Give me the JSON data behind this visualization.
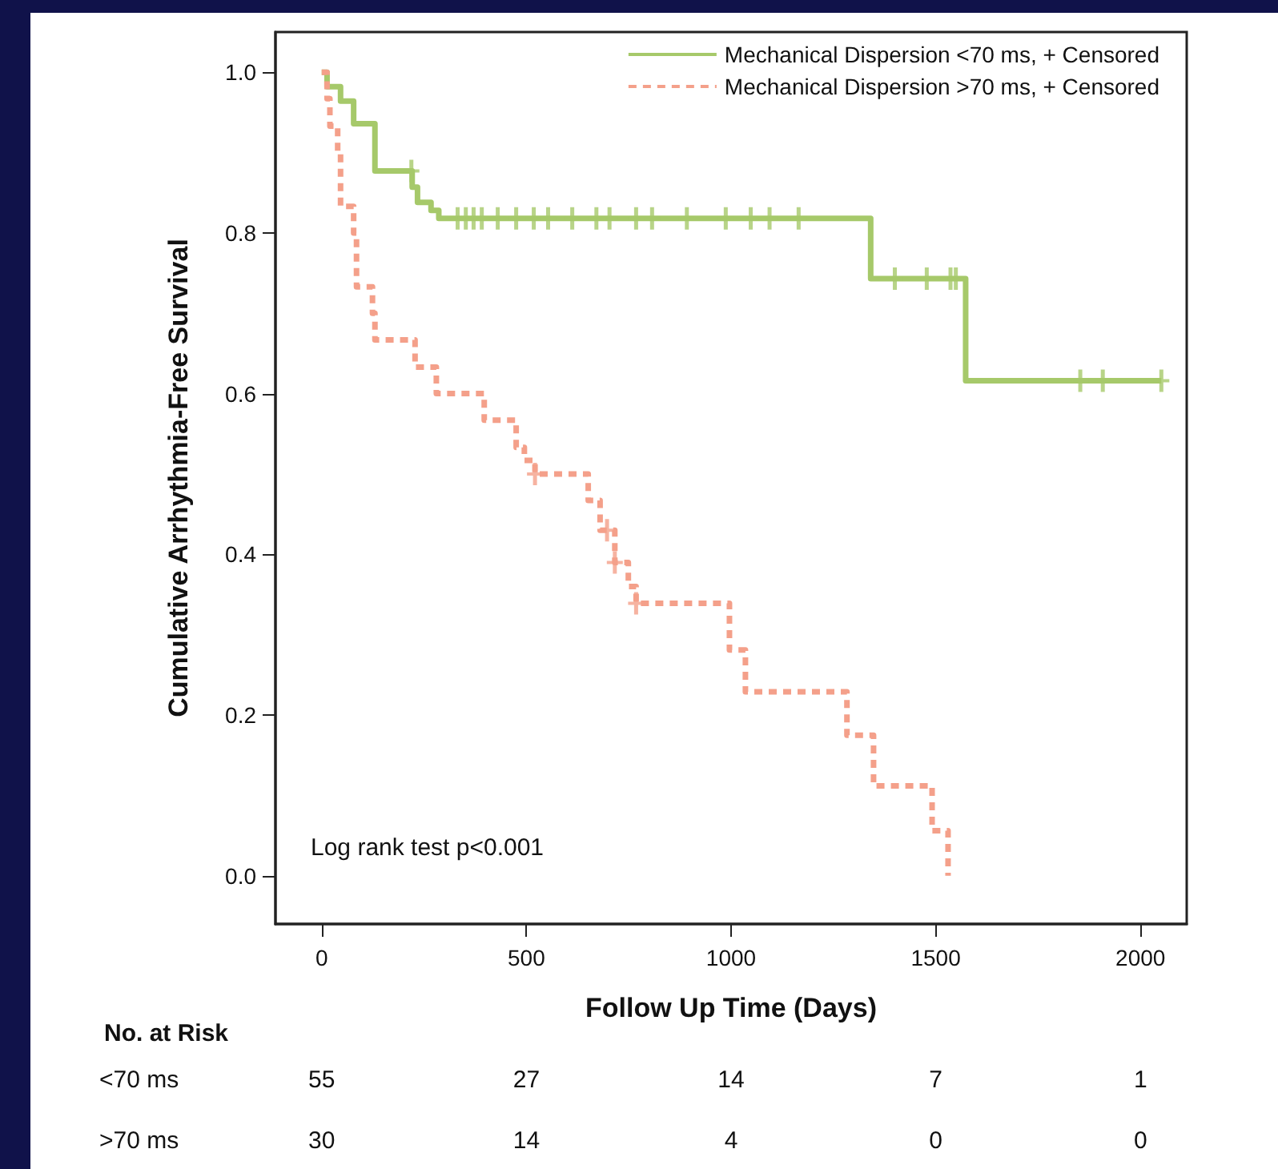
{
  "chart_data": {
    "type": "step",
    "xlabel": "Follow Up Time (Days)",
    "ylabel": "Cumulative Arrhythmia-Free Survival",
    "xlim": [
      -113,
      2113
    ],
    "xticks": [
      0,
      500,
      1000,
      1500,
      2000
    ],
    "ylim": [
      -0.06,
      1.05
    ],
    "yticks": [
      {
        "value": 0,
        "label": "0.0"
      },
      0.2,
      0.4,
      0.6,
      0.8,
      {
        "value": 1,
        "label": "1.0"
      }
    ],
    "grid": false,
    "legend": "top right",
    "series": [
      {
        "name": "Mechanical Dispersion <70 ms, + Censored",
        "color": "#a6c96a",
        "line_style": "solid",
        "x": [
          0,
          13,
          46,
          78,
          130,
          221,
          234,
          267,
          286,
          1341,
          1573,
          2051
        ],
        "values": [
          1,
          0.982,
          0.964,
          0.936,
          0.877,
          0.857,
          0.838,
          0.828,
          0.818,
          0.743,
          0.616,
          0.616
        ]
      },
      {
        "name": "Mechanical Dispersion >70 ms, + Censored",
        "color": "#f4a08a",
        "line_style": "dashed",
        "x": [
          0,
          13,
          20,
          39,
          46,
          78,
          85,
          124,
          130,
          228,
          280,
          397,
          475,
          495,
          521,
          651,
          680,
          716,
          749,
          768,
          996,
          1035,
          1283,
          1348,
          1491,
          1530
        ],
        "values": [
          1,
          0.967,
          0.933,
          0.9,
          0.833,
          0.8,
          0.733,
          0.7,
          0.667,
          0.633,
          0.6,
          0.567,
          0.533,
          0.517,
          0.5,
          0.467,
          0.43,
          0.39,
          0.36,
          0.339,
          0.281,
          0.229,
          0.175,
          0.112,
          0.056,
          0
        ]
      },
      {
        "type": "scatter",
        "marker": "cross",
        "color": "#a6c96a",
        "x": [
          219,
          332,
          352,
          371,
          391,
          430,
          475,
          518,
          553,
          612,
          671,
          703,
          768,
          807,
          892,
          987,
          1048,
          1094,
          1165,
          1400,
          1478,
          1536,
          1549,
          1853,
          1908,
          2051
        ],
        "values": [
          0.877,
          0.818,
          0.818,
          0.818,
          0.818,
          0.818,
          0.818,
          0.818,
          0.818,
          0.818,
          0.818,
          0.818,
          0.818,
          0.818,
          0.818,
          0.818,
          0.818,
          0.818,
          0.818,
          0.743,
          0.743,
          0.743,
          0.743,
          0.616,
          0.616,
          0.616
        ]
      },
      {
        "type": "scatter",
        "marker": "cross",
        "color": "#f4a08a",
        "x": [
          521,
          697,
          716,
          768
        ],
        "values": [
          0.5,
          0.43,
          0.39,
          0.339
        ]
      }
    ],
    "annotations": [
      "Log rank test p<0.001",
      "No. at Risk",
      "<70 ms",
      "55",
      "27",
      "14",
      "7",
      "1",
      ">70 ms",
      "30",
      "14",
      "4",
      "0",
      "0"
    ]
  }
}
